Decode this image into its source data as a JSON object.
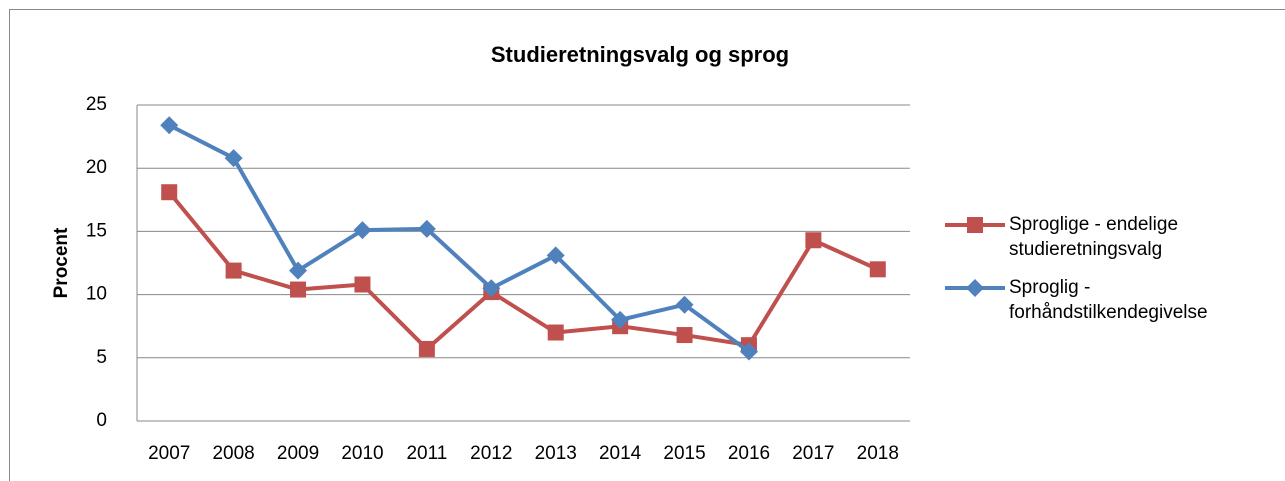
{
  "chart_data": {
    "type": "line",
    "title": "Studieretningsvalg og sprog",
    "y_label": "Procent",
    "categories": [
      "2007",
      "2008",
      "2009",
      "2010",
      "2011",
      "2012",
      "2013",
      "2014",
      "2015",
      "2016",
      "2017",
      "2018"
    ],
    "series": [
      {
        "name": "Sproglige - endelige studieretningsvalg",
        "color": "#c0504d",
        "marker": "square",
        "values": [
          18.1,
          11.9,
          10.4,
          10.8,
          5.7,
          10.2,
          7.0,
          7.5,
          6.8,
          6.0,
          14.3,
          12.0
        ]
      },
      {
        "name": "Sproglig - forhåndstilkendegivelse",
        "color": "#4f81bd",
        "marker": "diamond",
        "values": [
          23.4,
          20.8,
          11.9,
          15.1,
          15.2,
          10.5,
          13.1,
          8.0,
          9.2,
          5.5,
          null,
          null
        ]
      }
    ],
    "ylim": [
      0,
      25
    ],
    "yticks": [
      0,
      5,
      10,
      15,
      20,
      25
    ],
    "grid": true,
    "legend": "right"
  }
}
